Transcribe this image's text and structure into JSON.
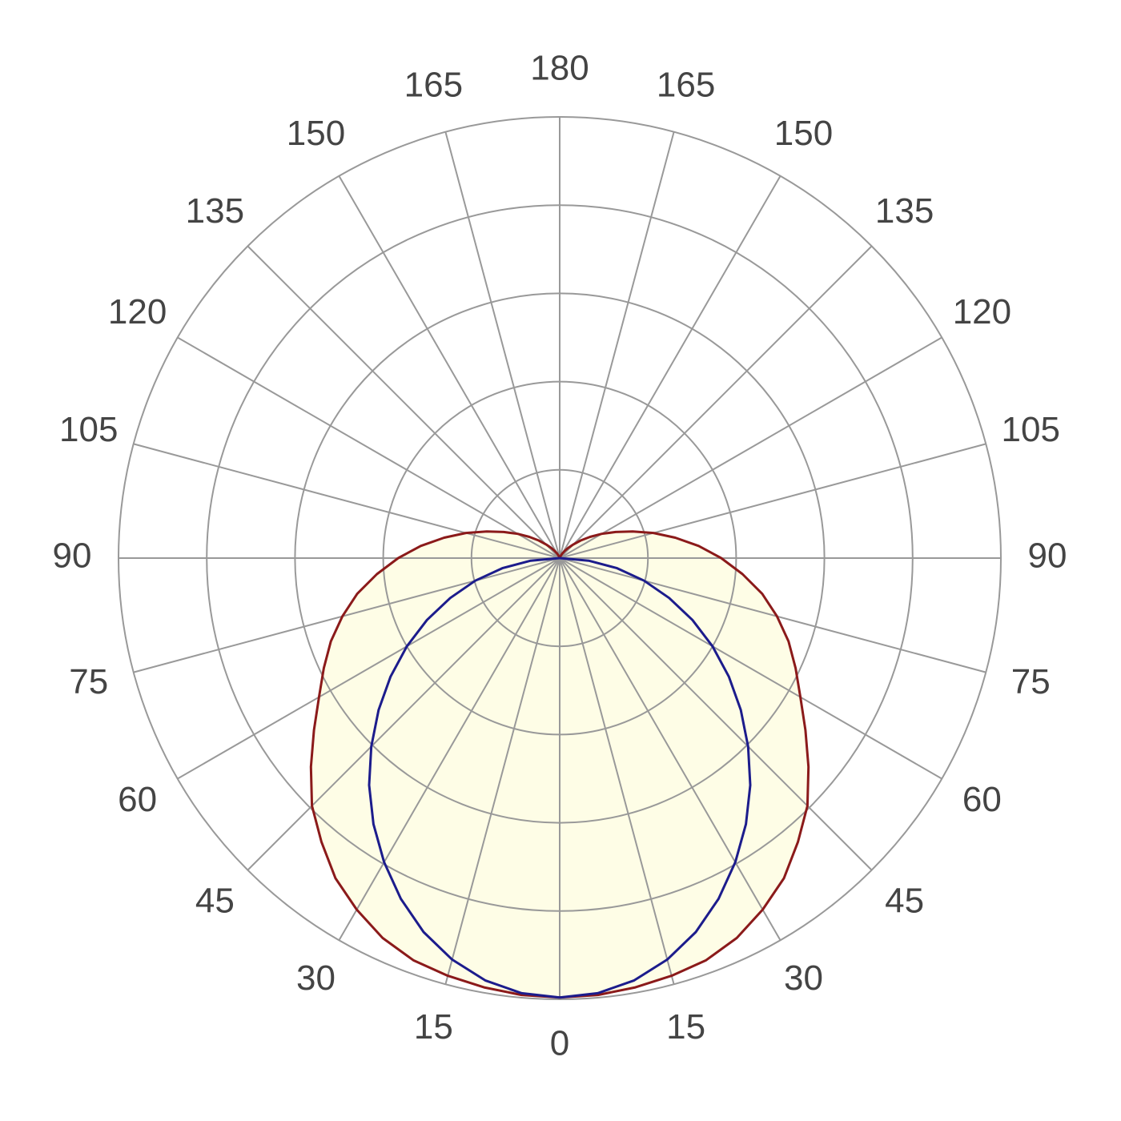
{
  "chart_data": {
    "type": "polar",
    "x": [
      0,
      5,
      10,
      15,
      20,
      25,
      30,
      35,
      40,
      45,
      50,
      55,
      60,
      65,
      70,
      75,
      80,
      85,
      90,
      95,
      100,
      105,
      110,
      115,
      120,
      125,
      130,
      135,
      140,
      145,
      150,
      155,
      160,
      165,
      170,
      175,
      180
    ],
    "series": [
      {
        "color": "#8b1a1a",
        "values": [
          4.98,
          4.97,
          4.94,
          4.9,
          4.85,
          4.75,
          4.6,
          4.43,
          4.2,
          3.97,
          3.68,
          3.4,
          3.15,
          2.95,
          2.76,
          2.55,
          2.33,
          2.08,
          1.83,
          1.58,
          1.33,
          1.1,
          0.88,
          0.7,
          0.55,
          0.42,
          0.31,
          0.22,
          0.15,
          0.1,
          0.06,
          0.03,
          0.01,
          0,
          0,
          0,
          0
        ]
      },
      {
        "color": "#1c1c8c",
        "values": [
          4.98,
          4.95,
          4.86,
          4.71,
          4.51,
          4.26,
          3.98,
          3.68,
          3.36,
          3.02,
          2.68,
          2.34,
          2.0,
          1.66,
          1.32,
          0.99,
          0.66,
          0.33,
          0,
          0,
          0,
          0,
          0,
          0,
          0,
          0,
          0,
          0,
          0,
          0,
          0,
          0,
          0,
          0,
          0,
          0,
          0
        ]
      }
    ],
    "fill": "#fefde6",
    "rlim": [
      0,
      5
    ],
    "rticks": [
      1,
      2,
      3,
      4,
      5
    ],
    "angle_ticks": [
      0,
      15,
      30,
      45,
      60,
      75,
      90,
      105,
      120,
      135,
      150,
      165,
      180
    ],
    "grid": true,
    "grid_color": "#999999"
  }
}
